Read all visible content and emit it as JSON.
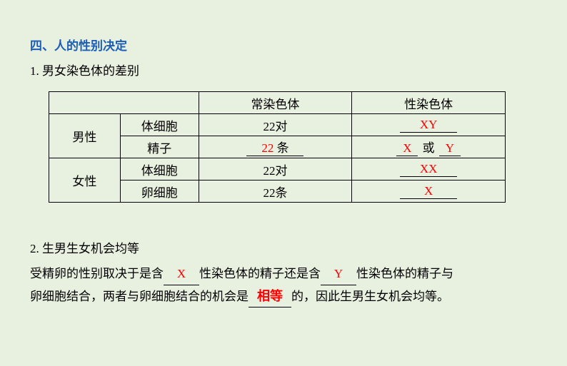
{
  "heading": "四、人的性别决定",
  "section1": {
    "title": "1. 男女染色体的差别",
    "table": {
      "headers": {
        "autosomes": "常染色体",
        "sex_chromosomes": "性染色体"
      },
      "rows": {
        "male": {
          "label": "男性",
          "somatic": {
            "label": "体细胞",
            "autosomes": "22对",
            "sex_fill": "XY"
          },
          "gamete": {
            "label": "精子",
            "autosomes_fill": "22",
            "autosomes_suffix": "条",
            "sex_fill_1": "X",
            "sex_middle": "或",
            "sex_fill_2": "Y"
          }
        },
        "female": {
          "label": "女性",
          "somatic": {
            "label": "体细胞",
            "autosomes": "22对",
            "sex_fill": "XX"
          },
          "gamete": {
            "label": "卵细胞",
            "autosomes": "22条",
            "sex_fill": "X"
          }
        }
      }
    }
  },
  "section2": {
    "title": "2. 生男生女机会均等",
    "text_1": "受精卵的性别取决于是含",
    "blank_1": "X",
    "text_2": "性染色体的精子还是含",
    "blank_2": "Y",
    "text_3": "性染色体的精子与",
    "text_4": "卵细胞结合，两者与卵细胞结合的机会是",
    "blank_3": "相等",
    "text_5": "的，因此生男生女机会均等。"
  },
  "style": {
    "background_color": "#e8f0e0",
    "heading_color": "#1a5eb8",
    "text_color": "#000000",
    "fill_color": "#ff0000",
    "font_size": 17,
    "heading_font_weight": "bold",
    "table_border_color": "#000000"
  }
}
